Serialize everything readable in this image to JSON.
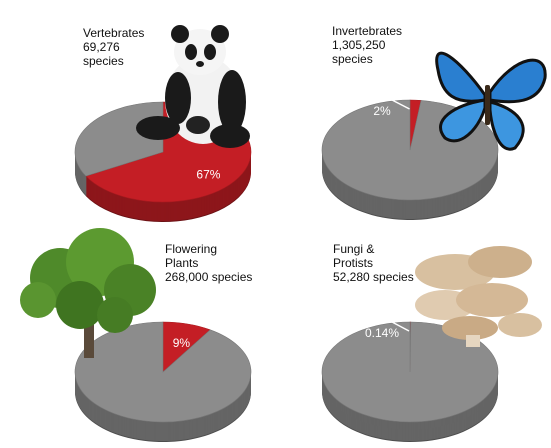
{
  "chart_data": [
    {
      "type": "pie",
      "title": [
        "Vertebrates"
      ],
      "subtitle": [
        "69,276",
        "species"
      ],
      "categories": [
        null,
        null
      ],
      "values": [
        67,
        33
      ],
      "value_labels": [
        "67%",
        null
      ],
      "colors": [
        "#c41e25",
        "#8c8c8c"
      ]
    },
    {
      "type": "pie",
      "title": [
        "Invertebrates"
      ],
      "subtitle": [
        "1,305,250",
        "species"
      ],
      "categories": [
        null,
        null
      ],
      "values": [
        2,
        98
      ],
      "value_labels": [
        "2%",
        null
      ],
      "colors": [
        "#c41e25",
        "#8c8c8c"
      ]
    },
    {
      "type": "pie",
      "title": [
        "Flowering",
        "Plants"
      ],
      "subtitle": [
        "268,000 species"
      ],
      "categories": [
        null,
        null
      ],
      "values": [
        9,
        91
      ],
      "value_labels": [
        "9%",
        null
      ],
      "colors": [
        "#c41e25",
        "#8c8c8c"
      ]
    },
    {
      "type": "pie",
      "title": [
        "Fungi &",
        "Protists"
      ],
      "subtitle": [
        "52,280 species"
      ],
      "categories": [
        null,
        null
      ],
      "values": [
        0.14,
        99.86
      ],
      "value_labels": [
        "0.14%",
        null
      ],
      "colors": [
        "#c41e25",
        "#8c8c8c"
      ]
    }
  ]
}
